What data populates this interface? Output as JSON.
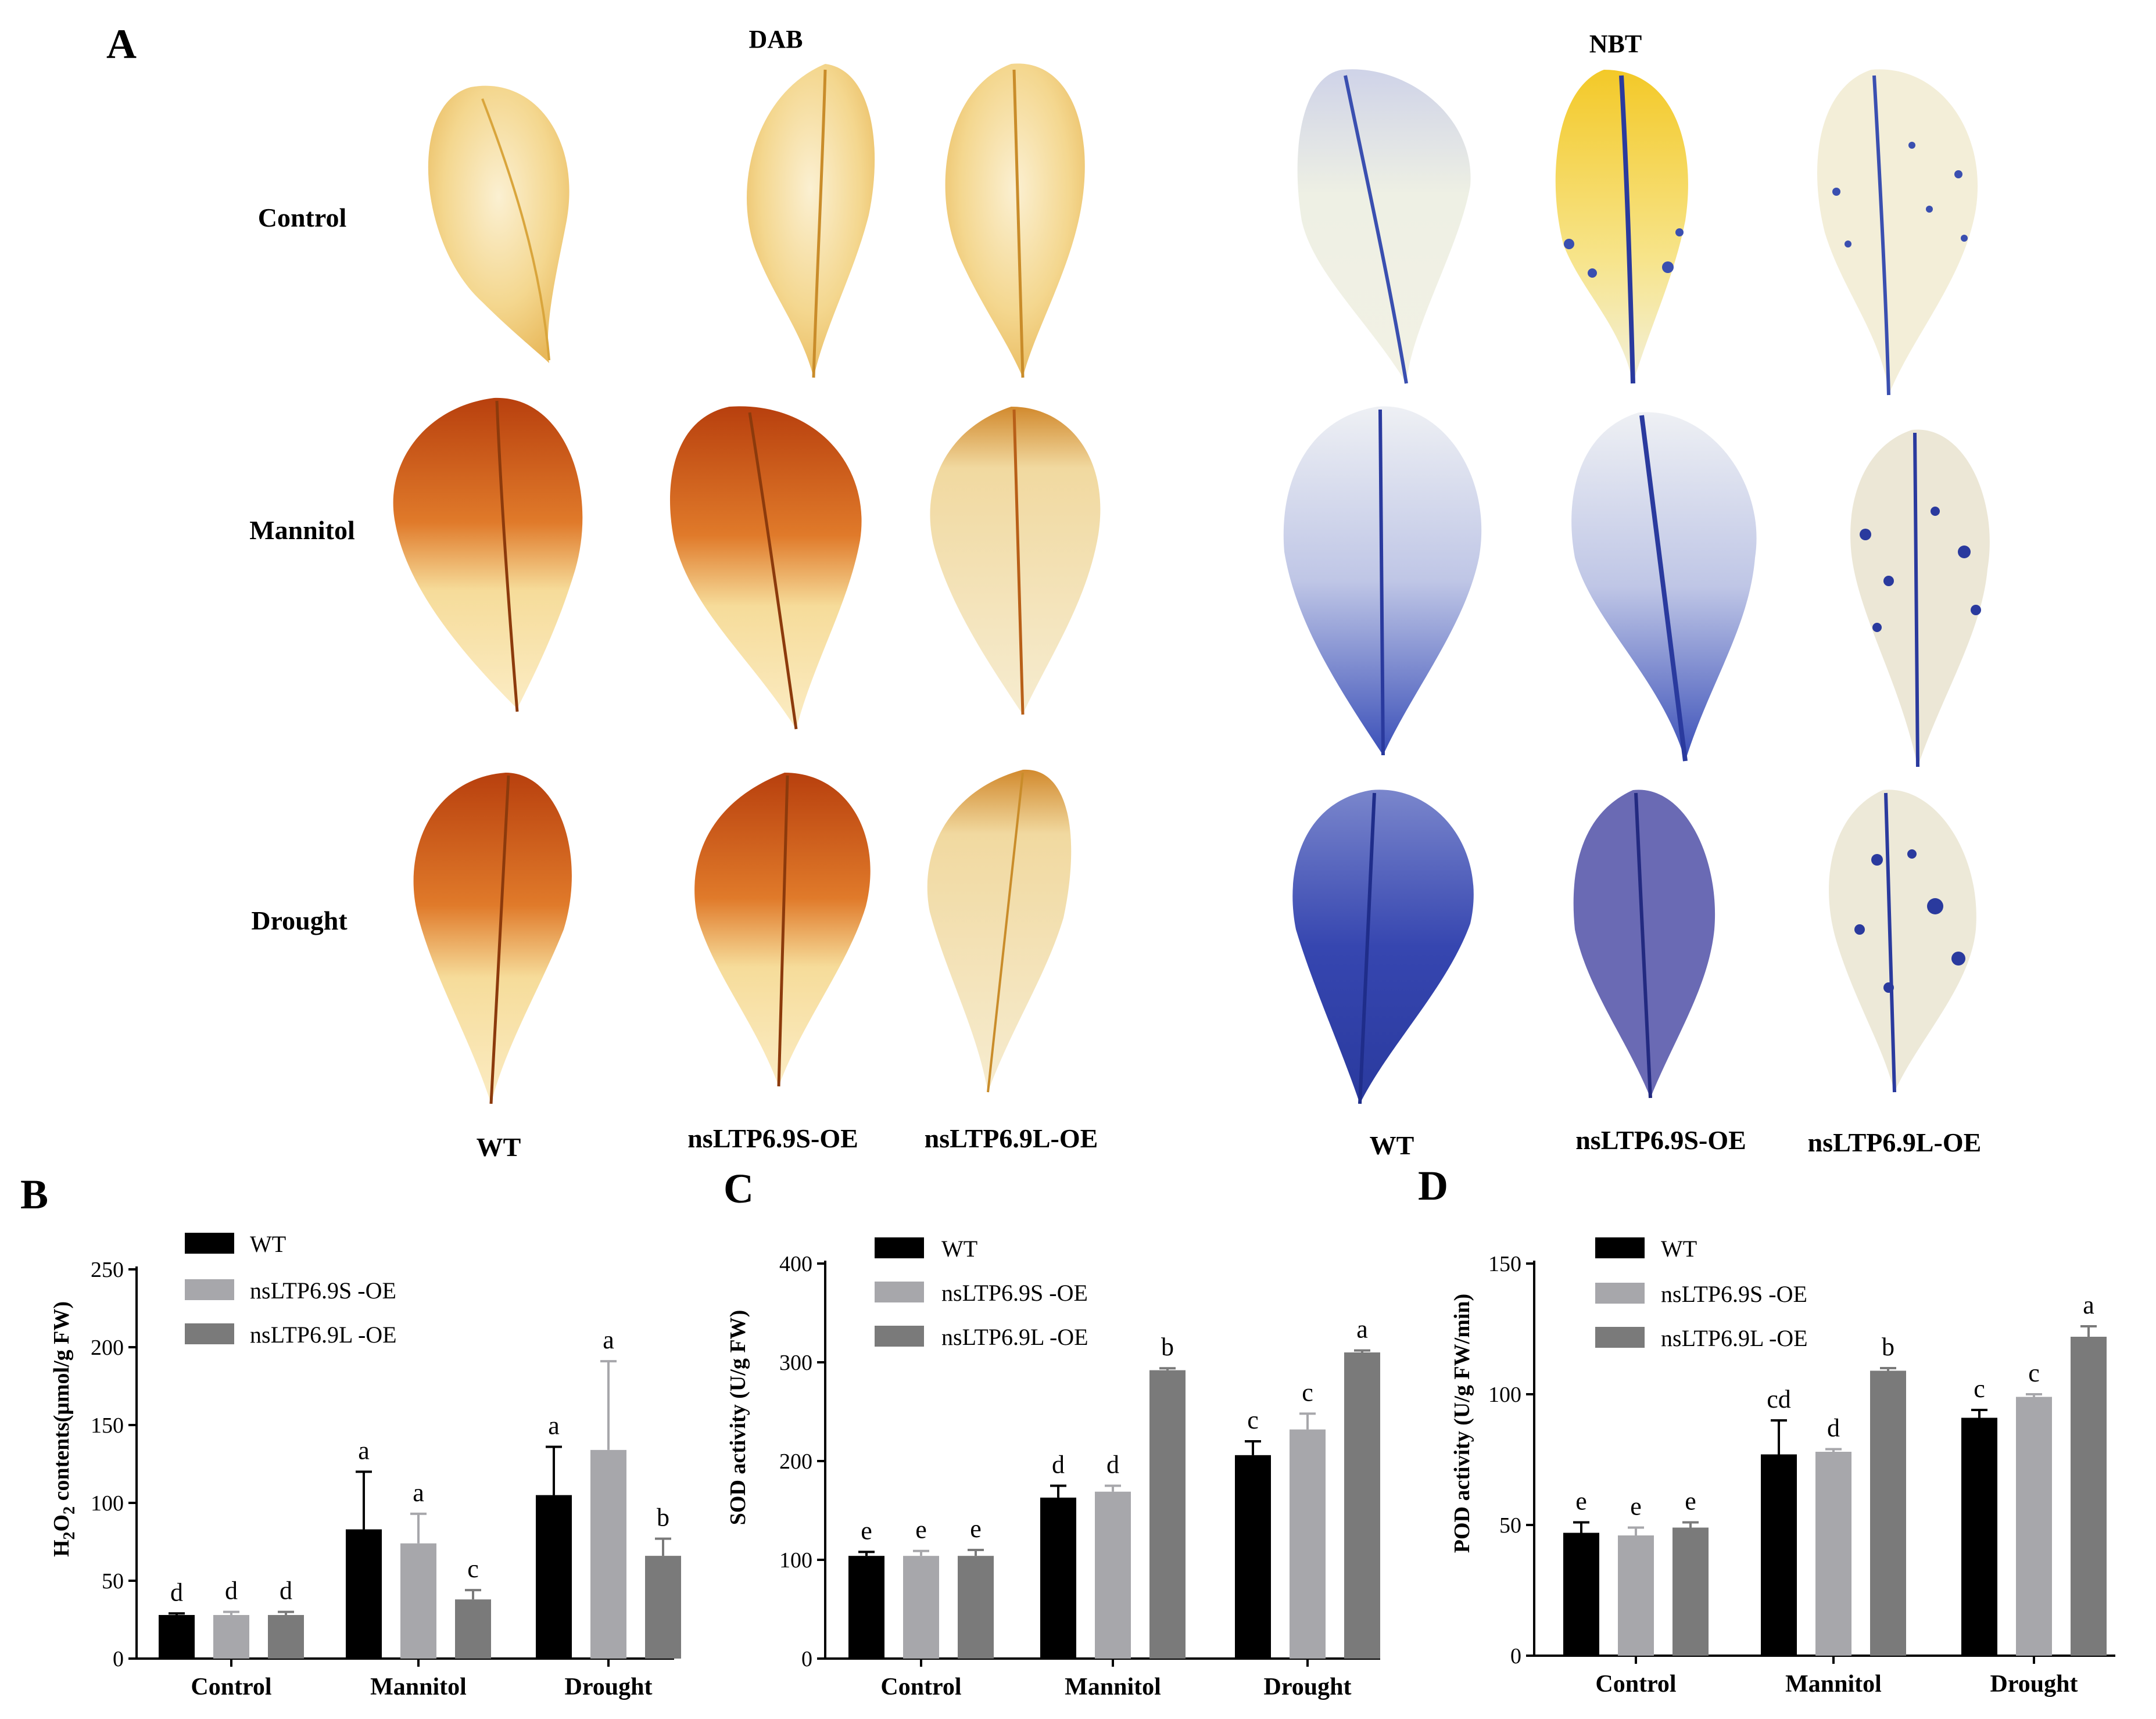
{
  "panel_labels": {
    "a": "A",
    "b": "B",
    "c": "C",
    "d": "D"
  },
  "panel_a": {
    "stain_headers": [
      "DAB",
      "NBT"
    ],
    "row_labels": [
      "Control",
      "Mannitol",
      "Drought"
    ],
    "col_labels_dab": [
      "WT",
      "nsLTP6.9S-OE",
      "nsLTP6.9L-OE"
    ],
    "col_labels_nbt": [
      "WT",
      "nsLTP6.9S-OE",
      "nsLTP6.9L-OE"
    ],
    "colors": {
      "dab_control": "#f2d28a",
      "dab_stress": "#d2691e",
      "dab_light": "#f7e6b8",
      "nbt_light": "#eef0e6",
      "nbt_blue": "#2a3fa8",
      "nbt_yellow": "#f5d53a"
    }
  },
  "legend": {
    "labels": [
      "WT",
      "nsLTP6.9S -OE",
      "nsLTP6.9L -OE"
    ],
    "colors": [
      "#000000",
      "#a7a7ab",
      "#7a7a7a"
    ]
  },
  "chart_data": [
    {
      "type": "bar",
      "panel": "B",
      "ylabel_pre": "H",
      "ylabel_sub": "2",
      "ylabel_mid": "O",
      "ylabel_sub2": "2",
      "ylabel_post": " contents(μmol/g FW)",
      "categories": [
        "Control",
        "Mannitol",
        "Drought"
      ],
      "ylim": [
        0,
        250
      ],
      "yticks": [
        "0",
        "50",
        "100",
        "150",
        "200",
        "250"
      ],
      "series": [
        {
          "name": "WT",
          "values": [
            28,
            83,
            105
          ],
          "errors": [
            1,
            37,
            31
          ],
          "letters": [
            "d",
            "a",
            "a"
          ]
        },
        {
          "name": "nsLTP6.9S -OE",
          "values": [
            28,
            74,
            134
          ],
          "errors": [
            2,
            19,
            57
          ],
          "letters": [
            "d",
            "a",
            "a"
          ]
        },
        {
          "name": "nsLTP6.9L -OE",
          "values": [
            28,
            38,
            66
          ],
          "errors": [
            2,
            6,
            11
          ],
          "letters": [
            "d",
            "c",
            "b"
          ]
        }
      ]
    },
    {
      "type": "bar",
      "panel": "C",
      "ylabel": "SOD activity (U/g FW)",
      "categories": [
        "Control",
        "Mannitol",
        "Drought"
      ],
      "ylim": [
        0,
        400
      ],
      "yticks": [
        "0",
        "100",
        "200",
        "300",
        "400"
      ],
      "series": [
        {
          "name": "WT",
          "values": [
            104,
            163,
            206
          ],
          "errors": [
            4,
            12,
            14
          ],
          "letters": [
            "e",
            "d",
            "c"
          ]
        },
        {
          "name": "nsLTP6.9S -OE",
          "values": [
            104,
            169,
            232
          ],
          "errors": [
            5,
            6,
            16
          ],
          "letters": [
            "e",
            "d",
            "c"
          ]
        },
        {
          "name": "nsLTP6.9L -OE",
          "values": [
            104,
            292,
            310
          ],
          "errors": [
            6,
            2,
            2
          ],
          "letters": [
            "e",
            "b",
            "a"
          ]
        }
      ]
    },
    {
      "type": "bar",
      "panel": "D",
      "ylabel": "POD activity (U/g FW/min)",
      "categories": [
        "Control",
        "Mannitol",
        "Drought"
      ],
      "ylim": [
        0,
        150
      ],
      "yticks": [
        "0",
        "50",
        "100",
        "150"
      ],
      "series": [
        {
          "name": "WT",
          "values": [
            47,
            77,
            91
          ],
          "errors": [
            4,
            13,
            3
          ],
          "letters": [
            "e",
            "cd",
            "c"
          ]
        },
        {
          "name": "nsLTP6.9S -OE",
          "values": [
            46,
            78,
            99
          ],
          "errors": [
            3,
            1,
            1
          ],
          "letters": [
            "e",
            "d",
            "c"
          ]
        },
        {
          "name": "nsLTP6.9L -OE",
          "values": [
            49,
            109,
            122
          ],
          "errors": [
            2,
            1,
            4
          ],
          "letters": [
            "e",
            "b",
            "a"
          ]
        }
      ]
    }
  ]
}
